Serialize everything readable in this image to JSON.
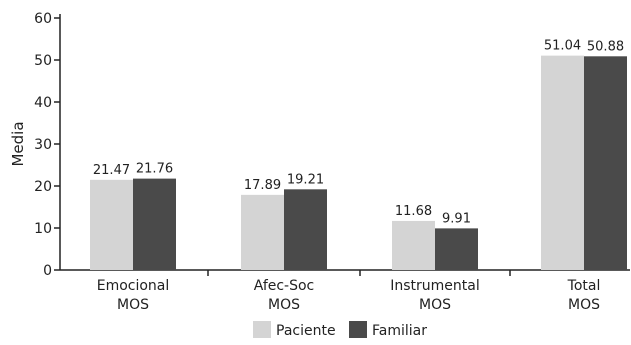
{
  "chart_data": {
    "type": "bar",
    "ylabel": "Media",
    "ylim": [
      0,
      60
    ],
    "yticks": [
      0,
      10,
      20,
      30,
      40,
      50,
      60
    ],
    "categories": [
      [
        "Emocional",
        "MOS"
      ],
      [
        "Afec-Soc",
        "MOS"
      ],
      [
        "Instrumental",
        "MOS"
      ],
      [
        "Total",
        "MOS"
      ]
    ],
    "series": [
      {
        "name": "Paciente",
        "color": "#d4d4d4",
        "values": [
          21.47,
          17.89,
          11.68,
          51.04
        ],
        "labels": [
          "21.47",
          "17.89",
          "11.68",
          "51.04"
        ]
      },
      {
        "name": "Familiar",
        "color": "#4a4a4a",
        "values": [
          21.76,
          19.21,
          9.91,
          50.88
        ],
        "labels": [
          "21.76",
          "19.21",
          "9.91",
          "50.88"
        ]
      }
    ],
    "legend_position": "bottom",
    "grid": false
  }
}
